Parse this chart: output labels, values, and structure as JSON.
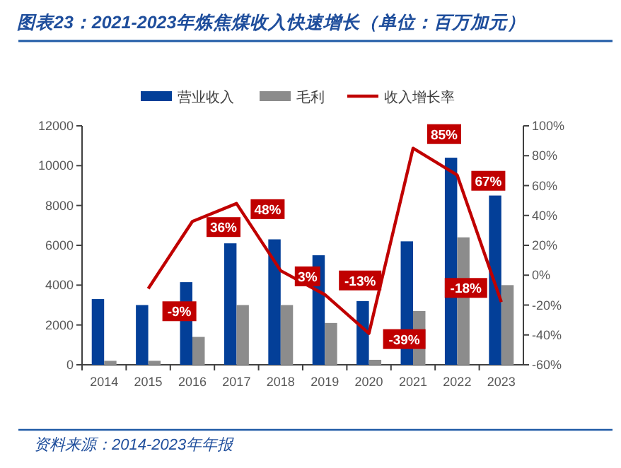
{
  "chart_data": {
    "type": "bar",
    "title": "图表23：2021-2023年炼焦煤收入快速增长（单位：百万加元）",
    "categories": [
      "2014",
      "2015",
      "2016",
      "2017",
      "2018",
      "2019",
      "2020",
      "2021",
      "2022",
      "2023"
    ],
    "series": [
      {
        "name": "营业收入",
        "color": "#033f98",
        "values": [
          3300,
          3000,
          4150,
          6100,
          6300,
          5500,
          3200,
          6200,
          10400,
          8500
        ]
      },
      {
        "name": "毛利",
        "color": "#8c8c8c",
        "values": [
          200,
          200,
          1400,
          3000,
          3000,
          2100,
          250,
          2700,
          6400,
          4000
        ]
      },
      {
        "name": "收入增长率",
        "type": "line",
        "axis": "y2",
        "color": "#c00000",
        "values": [
          null,
          -9,
          36,
          48,
          3,
          -13,
          -39,
          85,
          67,
          -18
        ],
        "value_labels": [
          null,
          "-9%",
          "36%",
          "48%",
          "3%",
          "-13%",
          "-39%",
          "85%",
          "67%",
          "-18%"
        ]
      }
    ],
    "ylim": [
      0,
      12000
    ],
    "yticks": [
      0,
      2000,
      4000,
      6000,
      8000,
      10000,
      12000
    ],
    "y2lim": [
      -60,
      100
    ],
    "y2ticks": [
      {
        "value": -60,
        "label": "-60%"
      },
      {
        "value": -40,
        "label": "-40%"
      },
      {
        "value": -20,
        "label": "-20%"
      },
      {
        "value": 0,
        "label": "0%"
      },
      {
        "value": 20,
        "label": "20%"
      },
      {
        "value": 40,
        "label": "40%"
      },
      {
        "value": 60,
        "label": "60%"
      },
      {
        "value": 80,
        "label": "80%"
      },
      {
        "value": 100,
        "label": "100%"
      }
    ],
    "legend": "top",
    "grid": false,
    "annotations": [
      "资料来源：2014-2023年年报"
    ]
  }
}
